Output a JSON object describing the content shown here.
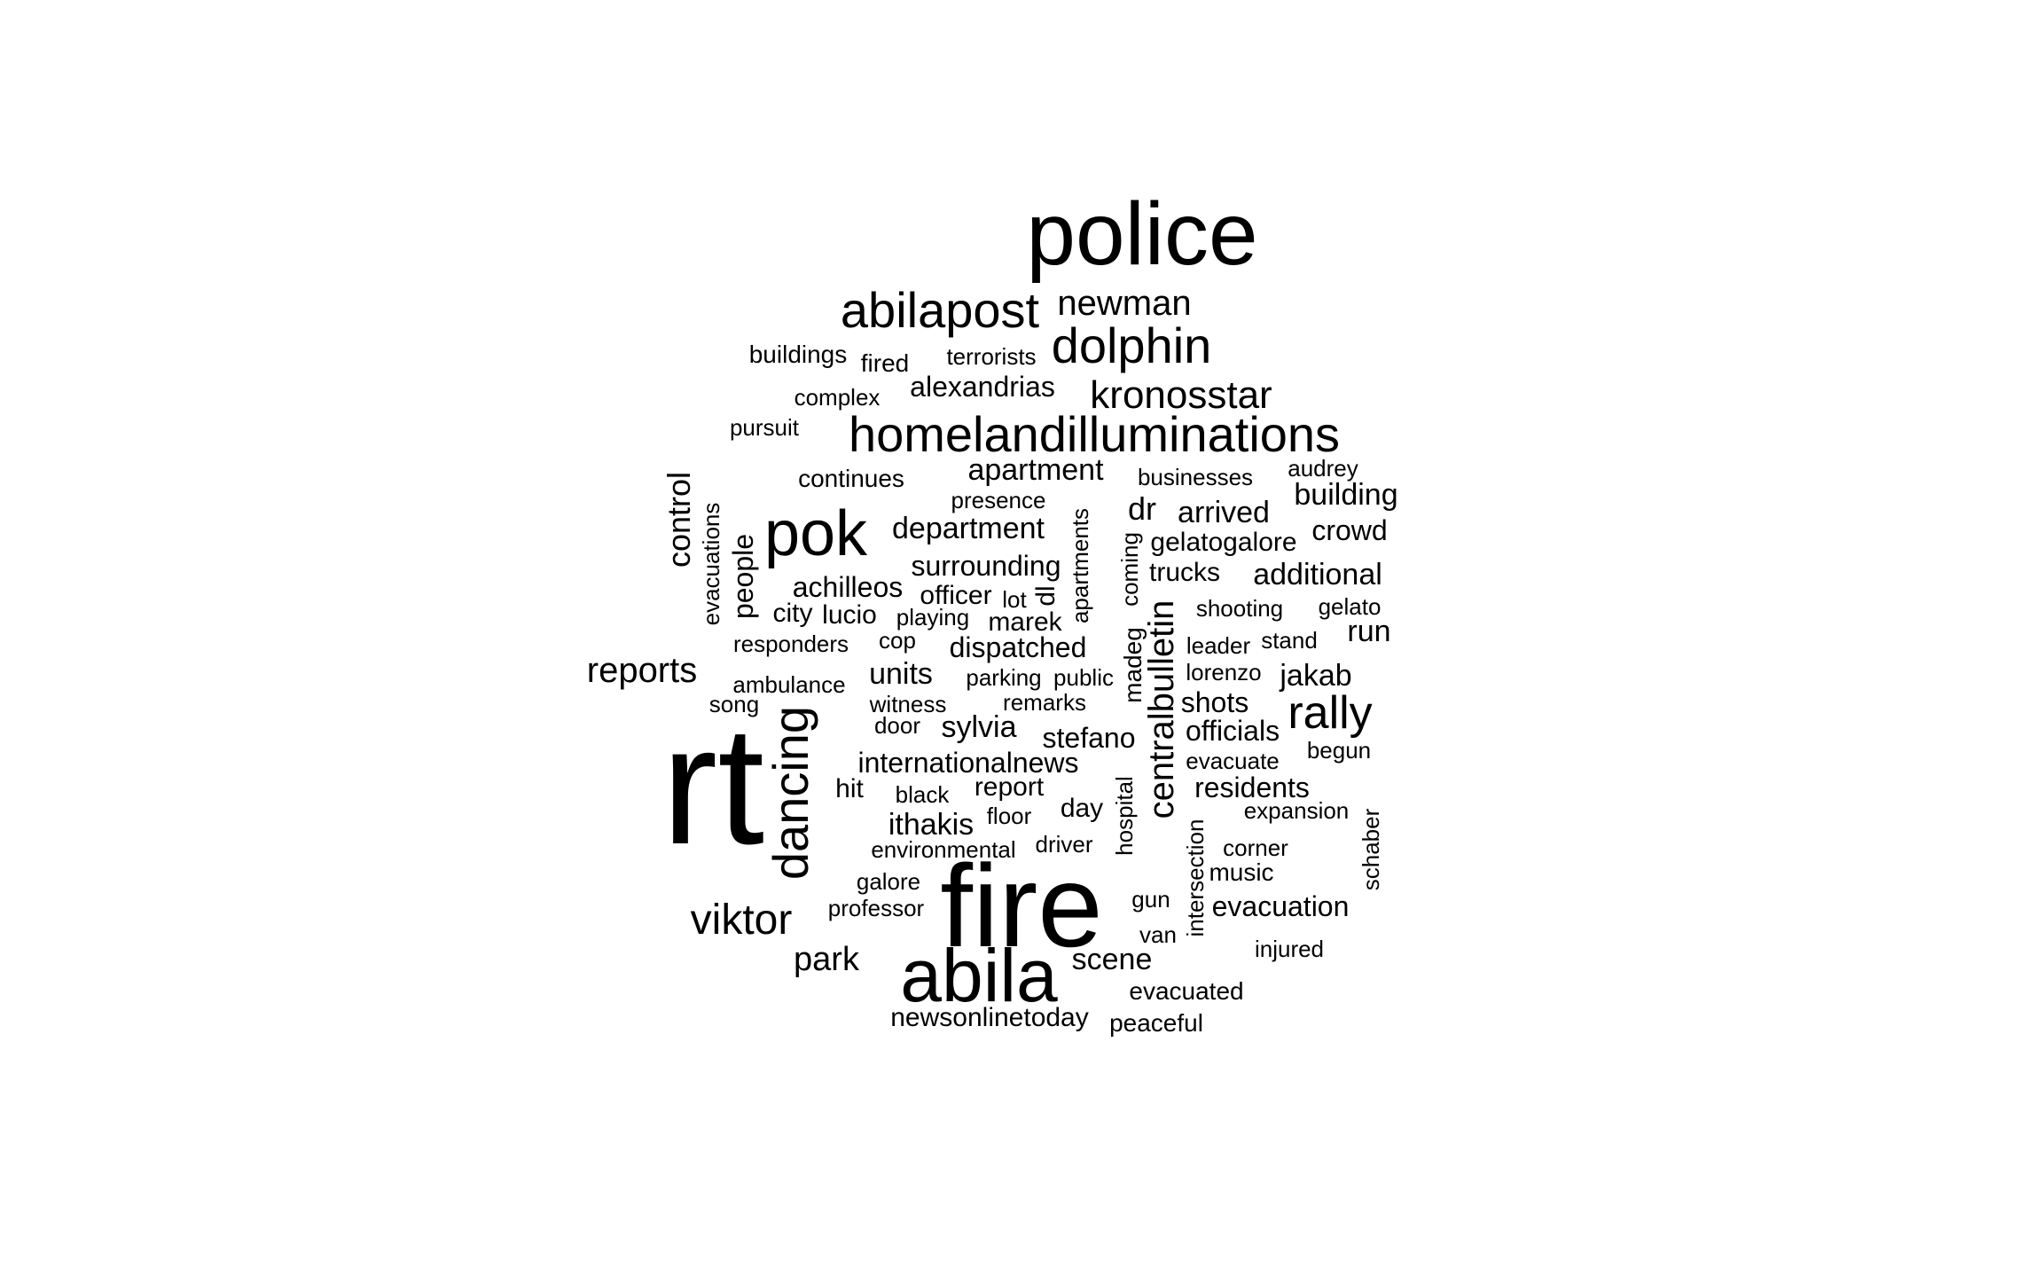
{
  "words": [
    "police",
    "rt",
    "fire",
    "abila",
    "pok",
    "abilapost",
    "dolphin",
    "homelandilluminations",
    "kronosstar",
    "newman",
    "dancing",
    "rally",
    "viktor",
    "reports",
    "centralbulletin",
    "control",
    "apartment",
    "department",
    "building",
    "additional",
    "park",
    "scene",
    "units",
    "run",
    "jakab",
    "sylvia",
    "ithakis",
    "crowd",
    "arrived",
    "dr",
    "officials",
    "evacuation",
    "residents",
    "surrounding",
    "achilleos",
    "dispatched",
    "internationalnews",
    "stefano",
    "alexandrias",
    "shots",
    "people",
    "gelatogalore",
    "trucks",
    "buildings",
    "fired",
    "terrorists",
    "complex",
    "pursuit",
    "continues",
    "businesses",
    "audrey",
    "presence",
    "officer",
    "lot",
    "dl",
    "city",
    "lucio",
    "playing",
    "marek",
    "shooting",
    "gelato",
    "responders",
    "cop",
    "leader",
    "stand",
    "ambulance",
    "parking",
    "public",
    "lorenzo",
    "song",
    "witness",
    "remarks",
    "door",
    "evacuate",
    "begun",
    "hit",
    "black",
    "report",
    "floor",
    "day",
    "expansion",
    "environmental",
    "driver",
    "corner",
    "music",
    "galore",
    "professor",
    "gun",
    "van",
    "injured",
    "evacuated",
    "newsonlinetoday",
    "peaceful",
    "evacuations",
    "apartments",
    "coming",
    "madeg",
    "hospital",
    "intersection",
    "schaber"
  ]
}
